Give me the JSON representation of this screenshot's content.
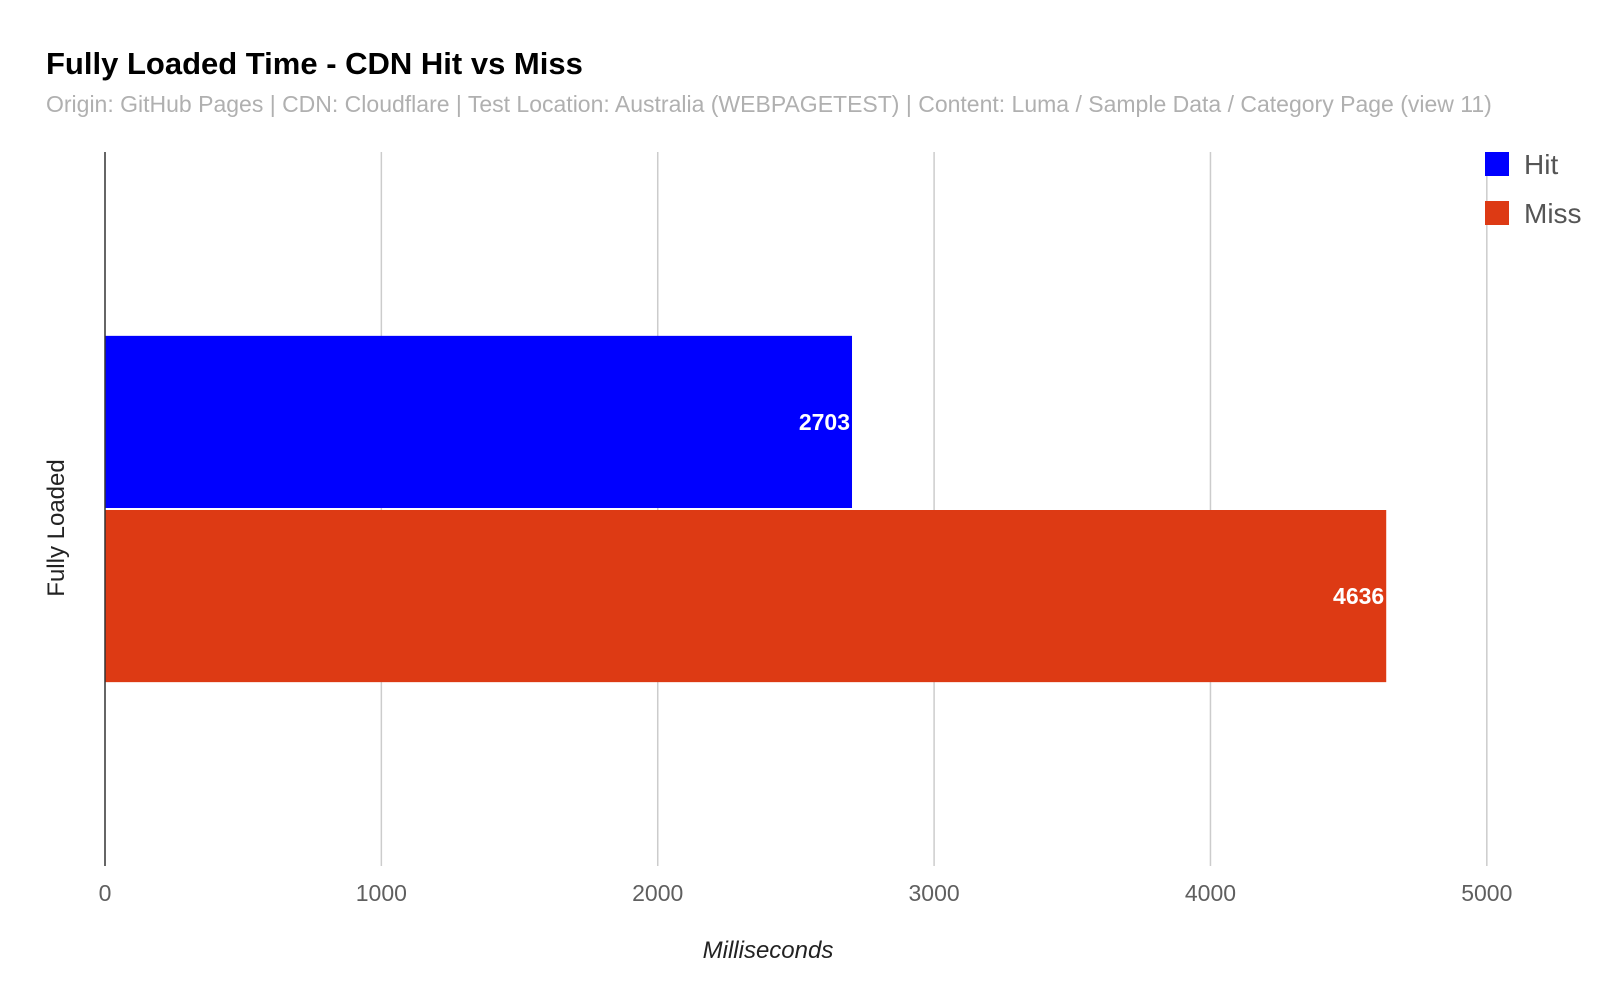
{
  "chart_data": {
    "type": "bar",
    "orientation": "horizontal",
    "title": "Fully Loaded Time - CDN Hit vs Miss",
    "subtitle": "Origin: GitHub Pages | CDN: Cloudflare | Test Location: Australia (WEBPAGETEST) | Content: Luma  / Sample Data / Category Page (view 11)",
    "categories": [
      "Fully Loaded"
    ],
    "series": [
      {
        "name": "Hit",
        "color": "#0000ff",
        "values": [
          2703
        ]
      },
      {
        "name": "Miss",
        "color": "#dd3a14",
        "values": [
          4636
        ]
      }
    ],
    "xlabel": "Milliseconds",
    "ylabel": "Fully Loaded",
    "xlim": [
      0,
      5500
    ],
    "xticks": [
      0,
      1000,
      2000,
      3000,
      4000,
      5000
    ],
    "grid": true,
    "legend_position": "top-right",
    "data_labels": true
  }
}
